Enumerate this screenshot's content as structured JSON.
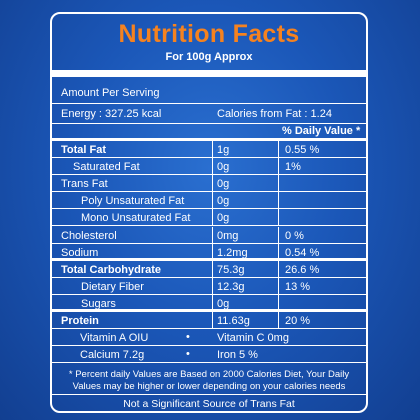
{
  "label": {
    "title": "Nutrition Facts",
    "subtitle": "For 100g Approx",
    "amount_per_serving": "Amount Per Serving",
    "energy": "Energy : 327.25 kcal",
    "calories_from_fat": "Calories from Fat : 1.24",
    "daily_value_header": "% Daily Value *",
    "rows": [
      {
        "name": "Total Fat",
        "amount": "1g",
        "dv": "0.55 %",
        "bold": true
      },
      {
        "name": "Saturated Fat",
        "amount": "0g",
        "dv": "1%",
        "bold": false
      },
      {
        "name": "Trans Fat",
        "amount": "0g",
        "dv": "",
        "bold": false
      },
      {
        "name": "Poly Unsaturated Fat",
        "amount": "0g",
        "dv": "",
        "bold": false
      },
      {
        "name": "Mono Unsaturated Fat",
        "amount": "0g",
        "dv": "",
        "bold": false
      },
      {
        "name": "Cholesterol",
        "amount": "0mg",
        "dv": "0 %",
        "bold": false
      },
      {
        "name": "Sodium",
        "amount": "1.2mg",
        "dv": "0.54 %",
        "bold": false
      },
      {
        "name": "Total Carbohydrate",
        "amount": "75.3g",
        "dv": "26.6 %",
        "bold": true
      },
      {
        "name": "Dietary Fiber",
        "amount": "12.3g",
        "dv": "13 %",
        "bold": false
      },
      {
        "name": "Sugars",
        "amount": "0g",
        "dv": "",
        "bold": false
      },
      {
        "name": "Protein",
        "amount": "11.63g",
        "dv": "20 %",
        "bold": true
      }
    ],
    "vitamins": [
      {
        "left": "Vitamin A OIU",
        "right": "Vitamin C 0mg"
      },
      {
        "left": "Calcium 7.2g",
        "right": "Iron 5 %"
      }
    ],
    "footnote": "* Percent daily Values are Based on 2000 Calories Diet, Your Daily Values may be higher or lower depending on your calories needs",
    "bottom_note": "Not a Significant Source of Trans Fat"
  },
  "colors": {
    "title": "#f5821f",
    "background": "#1b57b8",
    "text": "#ffffff"
  }
}
